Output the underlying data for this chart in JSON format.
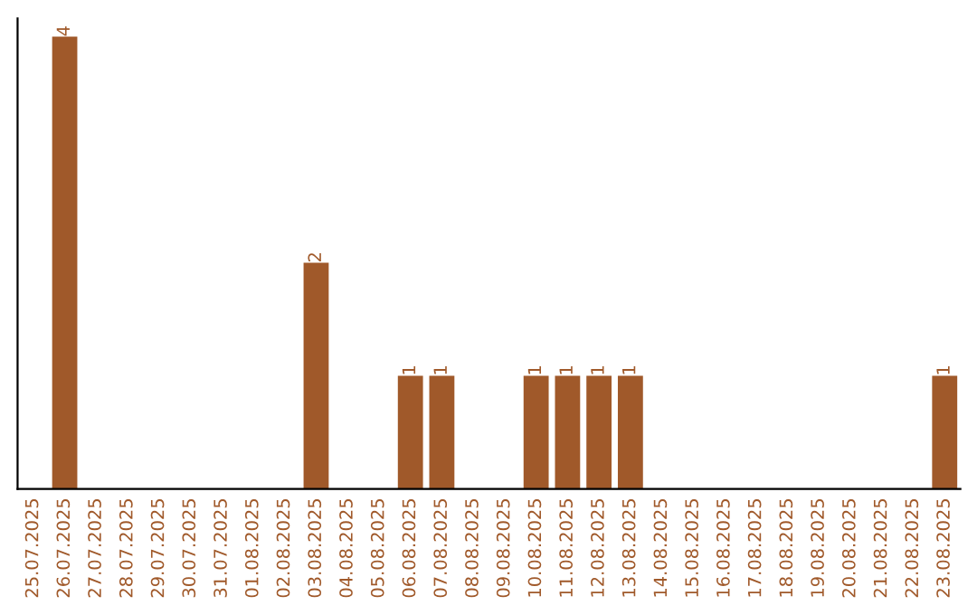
{
  "chart_data": {
    "type": "bar",
    "categories": [
      "25.07.2025",
      "26.07.2025",
      "27.07.2025",
      "28.07.2025",
      "29.07.2025",
      "30.07.2025",
      "31.07.2025",
      "01.08.2025",
      "02.08.2025",
      "03.08.2025",
      "04.08.2025",
      "05.08.2025",
      "06.08.2025",
      "07.08.2025",
      "08.08.2025",
      "09.08.2025",
      "10.08.2025",
      "11.08.2025",
      "12.08.2025",
      "13.08.2025",
      "14.08.2025",
      "15.08.2025",
      "16.08.2025",
      "17.08.2025",
      "18.08.2025",
      "19.08.2025",
      "20.08.2025",
      "21.08.2025",
      "22.08.2025",
      "23.08.2025"
    ],
    "values": [
      0,
      4,
      0,
      0,
      0,
      0,
      0,
      0,
      0,
      2,
      0,
      0,
      1,
      1,
      0,
      0,
      1,
      1,
      1,
      1,
      0,
      0,
      0,
      0,
      0,
      0,
      0,
      0,
      0,
      1
    ],
    "value_labels": [
      null,
      "4",
      null,
      null,
      null,
      null,
      null,
      null,
      null,
      "2",
      null,
      null,
      "1",
      "1",
      null,
      null,
      "1",
      "1",
      "1",
      "1",
      null,
      null,
      null,
      null,
      null,
      null,
      null,
      null,
      null,
      "1"
    ],
    "color": "#a0592a",
    "tick_labels": "x",
    "grid": false,
    "legend": false
  }
}
